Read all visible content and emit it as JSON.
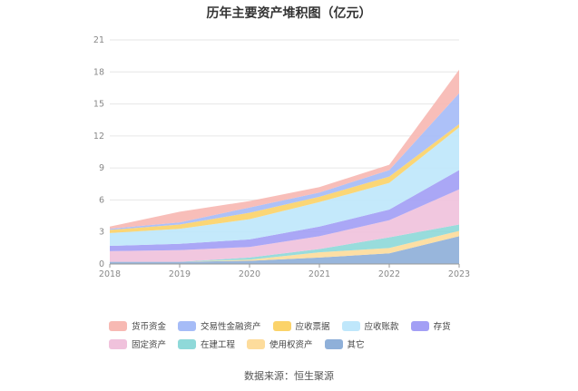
{
  "title": "历年主要资产堆积图（亿元）",
  "source": "数据来源：恒生聚源",
  "chart_data": {
    "type": "area",
    "stacked": true,
    "categories": [
      "2018",
      "2019",
      "2020",
      "2021",
      "2022",
      "2023"
    ],
    "ylim": [
      0,
      21
    ],
    "yticks": [
      0,
      3,
      6,
      9,
      12,
      15,
      18,
      21
    ],
    "legend_position": "bottom",
    "series": [
      {
        "name": "其它",
        "color": "#8fb0d9",
        "values": [
          0.2,
          0.2,
          0.3,
          0.6,
          1.0,
          2.6
        ]
      },
      {
        "name": "使用权资产",
        "color": "#fddc9c",
        "values": [
          0.0,
          0.0,
          0.1,
          0.5,
          0.5,
          0.5
        ]
      },
      {
        "name": "在建工程",
        "color": "#8fd9d9",
        "values": [
          0.0,
          0.0,
          0.2,
          0.3,
          1.0,
          0.6
        ]
      },
      {
        "name": "固定资产",
        "color": "#f0c2dc",
        "values": [
          1.0,
          1.1,
          1.0,
          1.2,
          1.6,
          3.3
        ]
      },
      {
        "name": "存货",
        "color": "#a39ff5",
        "values": [
          0.5,
          0.6,
          0.7,
          0.9,
          1.0,
          1.8
        ]
      },
      {
        "name": "应收账款",
        "color": "#bfe7fb",
        "values": [
          1.2,
          1.4,
          1.9,
          2.3,
          2.5,
          4.0
        ]
      },
      {
        "name": "应收票据",
        "color": "#fbd36a",
        "values": [
          0.3,
          0.4,
          0.6,
          0.5,
          0.6,
          0.3
        ]
      },
      {
        "name": "交易性金融资产",
        "color": "#a6bcf7",
        "values": [
          0.1,
          0.2,
          0.5,
          0.4,
          0.6,
          2.9
        ]
      },
      {
        "name": "货币资金",
        "color": "#f7b9b3",
        "values": [
          0.2,
          1.0,
          0.6,
          0.5,
          0.5,
          2.2
        ]
      }
    ],
    "legend_order": [
      "货币资金",
      "交易性金融资产",
      "应收票据",
      "应收账款",
      "存货",
      "固定资产",
      "在建工程",
      "使用权资产",
      "其它"
    ]
  }
}
